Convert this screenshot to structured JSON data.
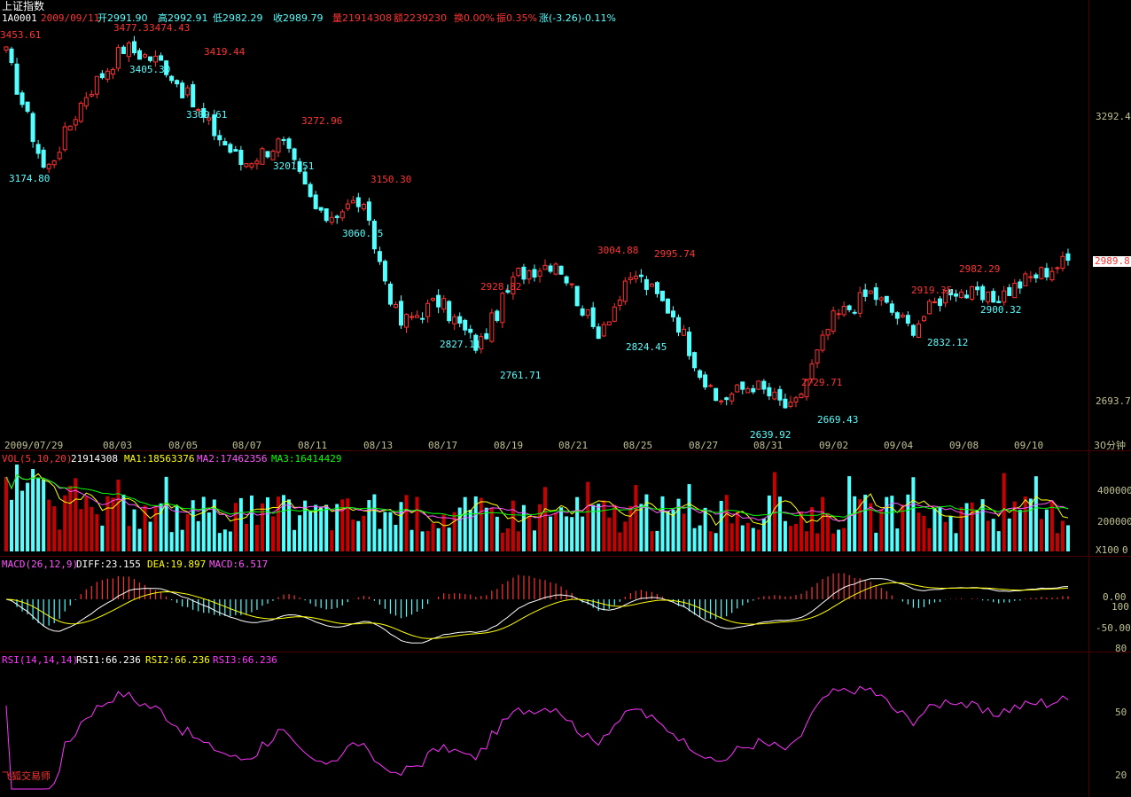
{
  "header": {
    "title": "上证指数",
    "code": "1A0001",
    "date": "2009/09/11",
    "open": "开2991.90",
    "high": "高2992.91",
    "low": "低2982.29",
    "close": "收2989.79",
    "volume": "量21914308",
    "amount": "额2239230",
    "turnover": "换0.00%",
    "amplitude": "振0.35%",
    "change": "涨(-3.26)-0.11%"
  },
  "colors": {
    "up": "#ff3232",
    "up_fill": "#c80000",
    "down": "#54ffff",
    "axis": "#c0c090",
    "ma1": "#ffff00",
    "ma2": "#ff55ff",
    "ma3": "#00ff00",
    "diff": "#ffffff",
    "dea": "#ffff00",
    "rsi": "#ff33ff"
  },
  "price_panel": {
    "right_axis": [
      "3292.4",
      "2693.7"
    ],
    "last_price": "2989.8",
    "high_labels": [
      "3453.61",
      "3477.3",
      "3474.43",
      "3419.44",
      "3272.96",
      "3150.30",
      "2928.82",
      "3004.88",
      "2995.74",
      "2729.71",
      "2919.35",
      "2982.29"
    ],
    "low_labels": [
      "3174.80",
      "3405.30",
      "3309.61",
      "3201.51",
      "3060.55",
      "2827.11",
      "2761.71",
      "2824.45",
      "2639.92",
      "2669.43",
      "2832.12",
      "2900.32"
    ]
  },
  "date_axis": {
    "labels": [
      "2009/07/29",
      "08/03",
      "08/05",
      "08/07",
      "08/11",
      "08/13",
      "08/17",
      "08/19",
      "08/21",
      "08/25",
      "08/27",
      "08/31",
      "09/02",
      "09/04",
      "09/08",
      "09/10"
    ],
    "period": "30分钟"
  },
  "volume_panel": {
    "title": "VOL(5,10,20)",
    "value": "21914308",
    "ma1": "MA1:18563376",
    "ma2": "MA2:17462356",
    "ma3": "MA3:16414429",
    "right_axis": [
      "400000",
      "200000",
      "X100",
      "0"
    ]
  },
  "macd_panel": {
    "title": "MACD(26,12,9)",
    "diff": "DIFF:23.155",
    "dea": "DEA:19.897",
    "macd": "MACD:6.517",
    "right_axis": [
      "0.00",
      "-50.00"
    ]
  },
  "rsi_panel": {
    "title": "RSI(14,14,14)",
    "rsi1": "RSI1:66.236",
    "rsi2": "RSI2:66.236",
    "rsi3": "RSI3:66.236",
    "right_axis": [
      "100",
      "80",
      "50",
      "20"
    ]
  },
  "watermark": "飞狐交易师",
  "chart_data": [
    {
      "type": "candlestick",
      "x": [
        "2009/07/29",
        "08/03",
        "08/05",
        "08/07",
        "08/11",
        "08/13",
        "08/17",
        "08/19",
        "08/21",
        "08/25",
        "08/27",
        "08/31",
        "09/02",
        "09/04",
        "09/08",
        "09/10"
      ],
      "closes": [
        3440,
        3180,
        3350,
        3455,
        3420,
        3300,
        3200,
        3250,
        3080,
        3120,
        2850,
        2900,
        2800,
        2960,
        2990,
        2830,
        2960,
        2870,
        2680,
        2720,
        2660,
        2860,
        2920,
        2840,
        2930,
        2900,
        2950,
        2989.79
      ],
      "ylim": [
        2600,
        3500
      ]
    },
    {
      "type": "bar",
      "title": "VOL(5,10,20)",
      "series": [
        {
          "name": "MA1",
          "values": [
            18563376
          ]
        },
        {
          "name": "MA2",
          "values": [
            17462356
          ]
        },
        {
          "name": "MA3",
          "values": [
            16414429
          ]
        }
      ]
    },
    {
      "type": "line",
      "title": "MACD(26,12,9)",
      "series": [
        {
          "name": "DIFF",
          "values": [
            23.155
          ]
        },
        {
          "name": "DEA",
          "values": [
            19.897
          ]
        },
        {
          "name": "MACD",
          "values": [
            6.517
          ]
        }
      ]
    },
    {
      "type": "line",
      "title": "RSI(14,14,14)",
      "series": [
        {
          "name": "RSI1",
          "values": [
            66.236
          ]
        },
        {
          "name": "RSI2",
          "values": [
            66.236
          ]
        },
        {
          "name": "RSI3",
          "values": [
            66.236
          ]
        }
      ]
    }
  ]
}
